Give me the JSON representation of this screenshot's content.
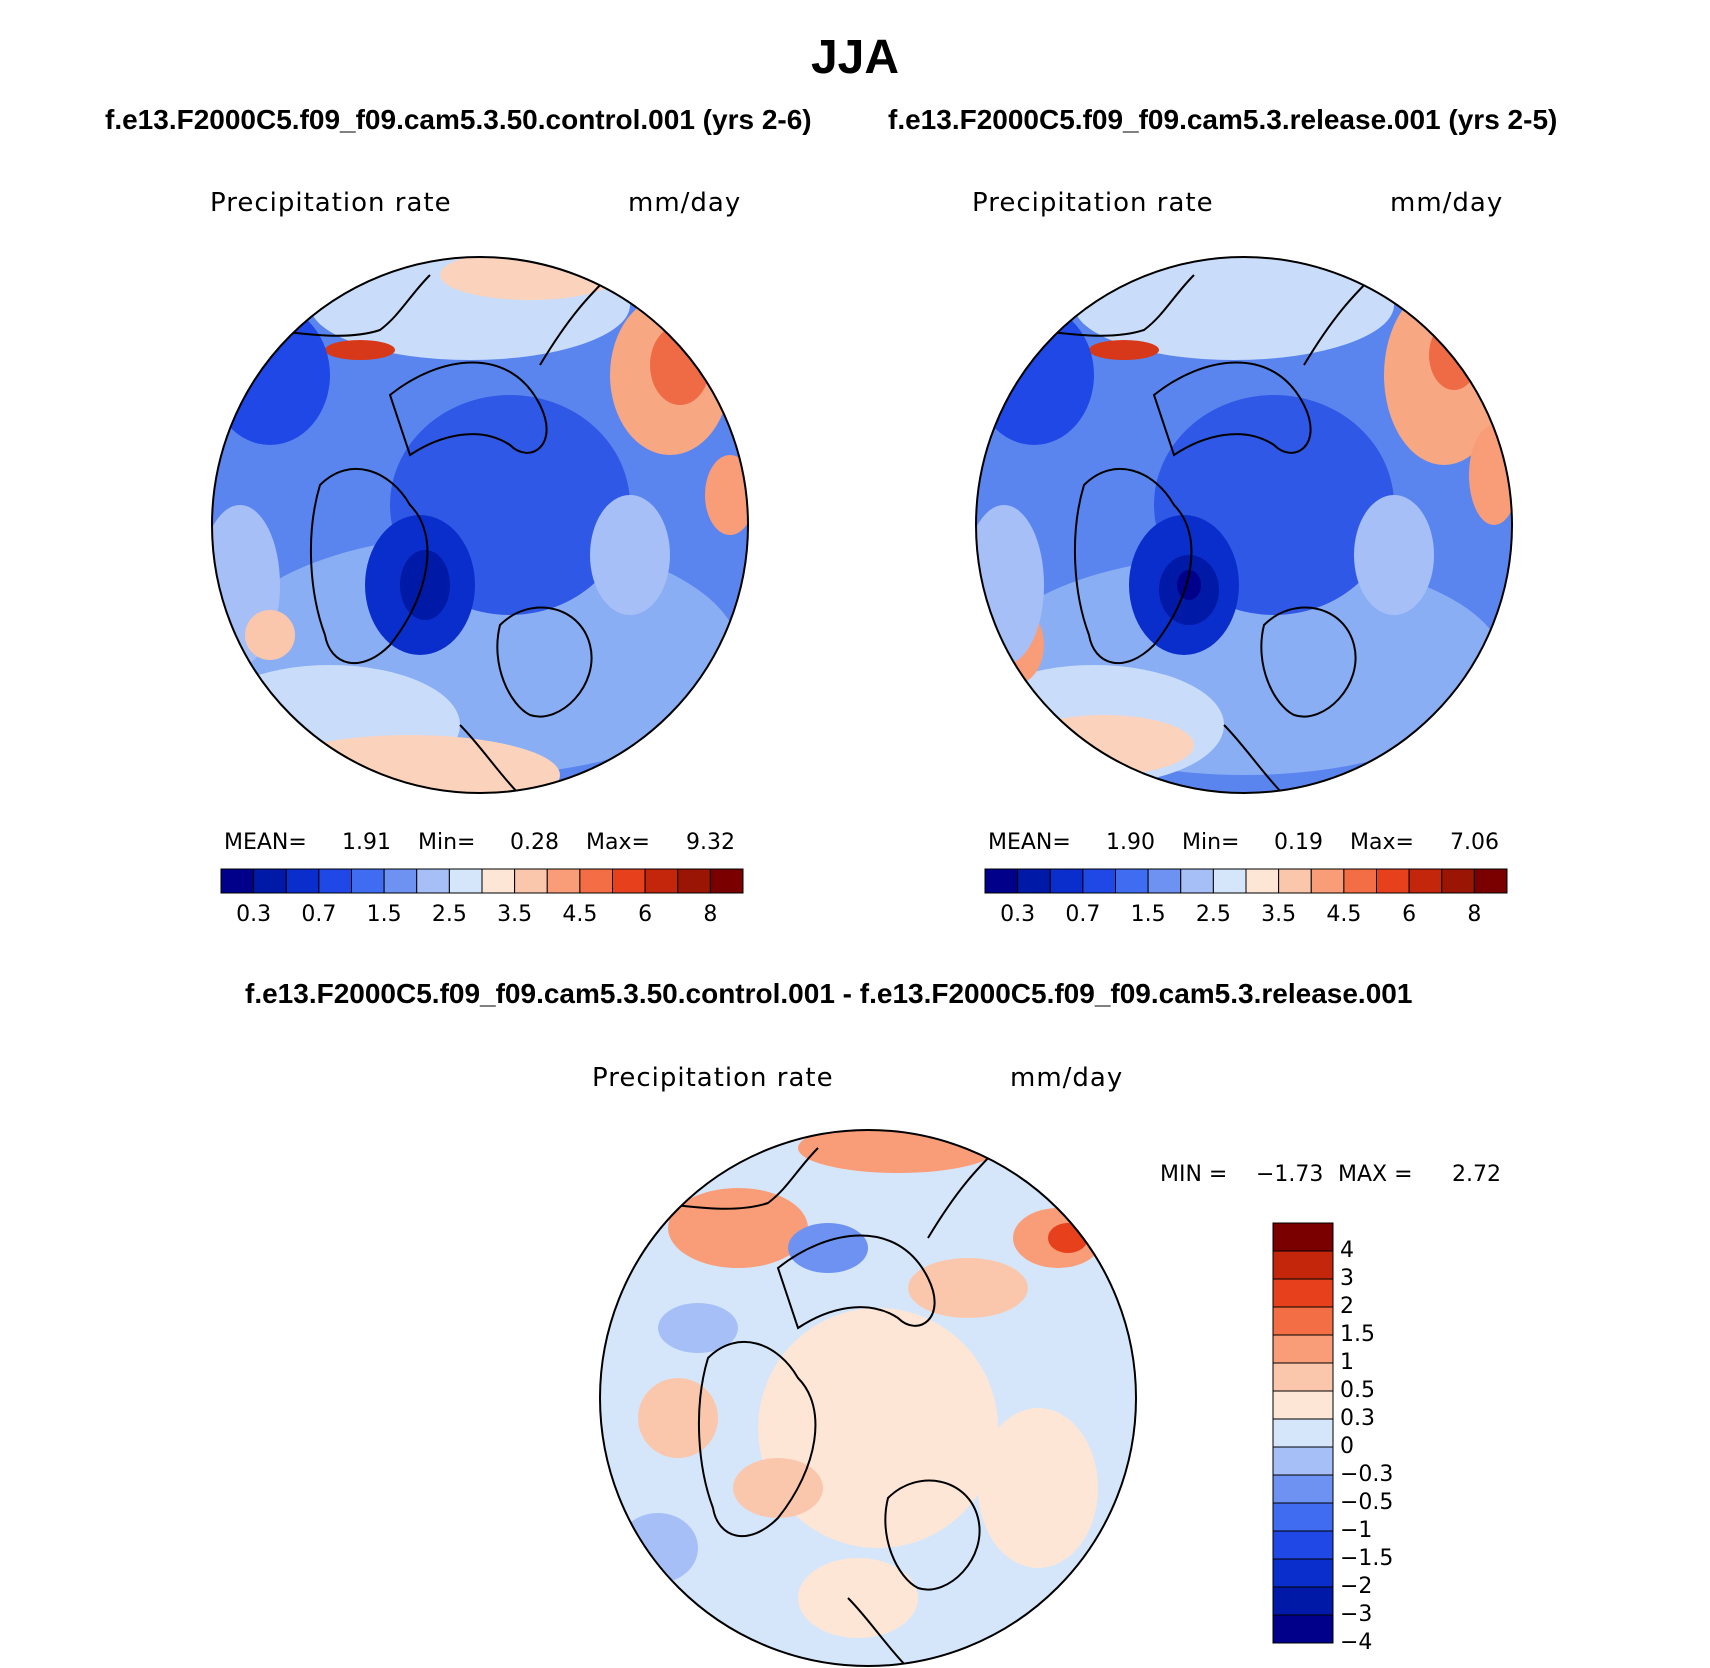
{
  "figure": {
    "title": "JJA",
    "panel1_case": "f.e13.F2000C5.f09_f09.cam5.3.50.control.001 (yrs 2-6)",
    "panel2_case": "f.e13.F2000C5.f09_f09.cam5.3.release.001 (yrs 2-5)",
    "diff_case": "f.e13.F2000C5.f09_f09.cam5.3.50.control.001 - f.e13.F2000C5.f09_f09.cam5.3.release.001"
  },
  "panels": [
    {
      "variable": "Precipitation rate",
      "units": "mm/day",
      "mean_label": "MEAN=",
      "mean": "1.91",
      "min_label": "Min=",
      "min": "0.28",
      "max_label": "Max=",
      "max": "9.32"
    },
    {
      "variable": "Precipitation rate",
      "units": "mm/day",
      "mean_label": "MEAN=",
      "mean": "1.90",
      "min_label": "Min=",
      "min": "0.19",
      "max_label": "Max=",
      "max": "7.06"
    }
  ],
  "diff_panel": {
    "variable": "Precipitation rate",
    "units": "mm/day",
    "min_label": "MIN =",
    "min": "−1.73",
    "max_label": "MAX =",
    "max": "2.72"
  },
  "colorbar_main": {
    "colors": [
      "#00008b",
      "#0019a6",
      "#0a2ecc",
      "#1f48e6",
      "#3f6cf0",
      "#6e92f2",
      "#a6c0f7",
      "#d5e6fb",
      "#fde6d6",
      "#fbc7ac",
      "#f99c78",
      "#f46e45",
      "#e6401c",
      "#c4260c",
      "#9b1505",
      "#7a0000"
    ],
    "tick_labels": [
      "0.3",
      "0.7",
      "1.5",
      "2.5",
      "3.5",
      "4.5",
      "6",
      "8"
    ]
  },
  "colorbar_diff": {
    "colors": [
      "#00008b",
      "#0019a6",
      "#0a2ecc",
      "#1f48e6",
      "#3f6cf0",
      "#6e92f2",
      "#a6c0f7",
      "#d5e6fb",
      "#fde6d6",
      "#fbc7ac",
      "#f99c78",
      "#f46e45",
      "#e6401c",
      "#c4260c",
      "#7a0000"
    ],
    "tick_labels": [
      "4",
      "3",
      "2",
      "1.5",
      "1",
      "0.5",
      "0.3",
      "0",
      "−0.3",
      "−0.5",
      "−1",
      "−1.5",
      "−2",
      "−3",
      "−4"
    ]
  }
}
